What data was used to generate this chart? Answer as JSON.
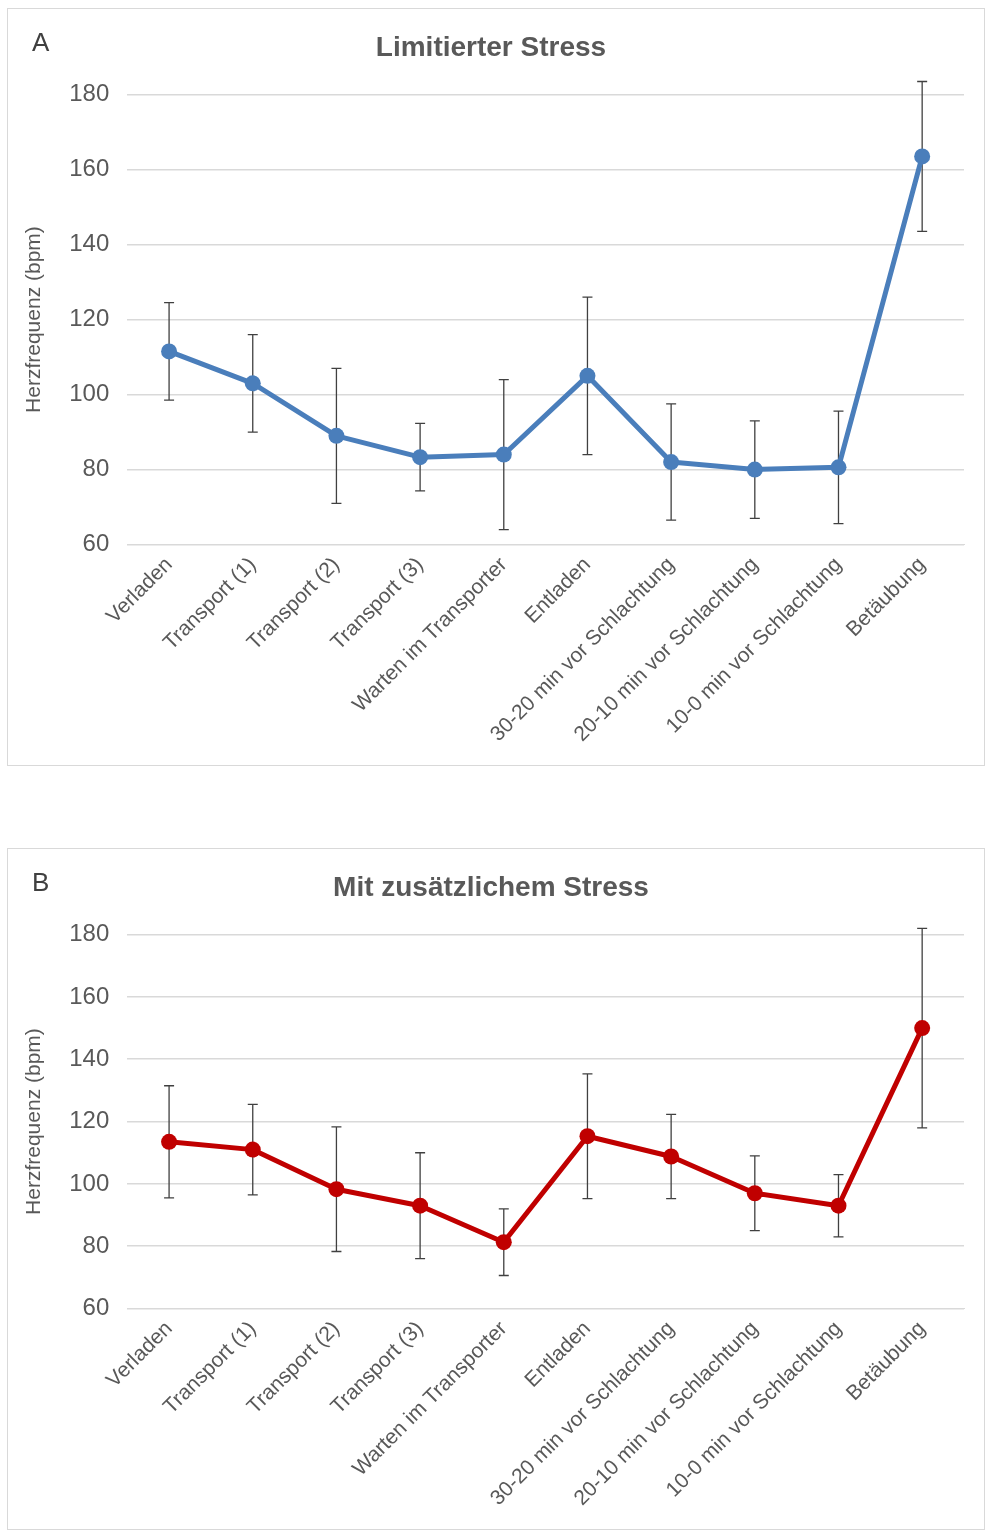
{
  "chart_data": [
    {
      "type": "line",
      "title": "Limitierter Stress",
      "annotations": [
        "A"
      ],
      "ylabel": "Herzfrequenz (bpm)",
      "categories": [
        "Verladen",
        "Transport (1)",
        "Transport (2)",
        "Transport (3)",
        "Warten im Transporter",
        "Entladen",
        "30-20 min vor Schlachtung",
        "20-10 min vor Schlachtung",
        "10-0 min vor Schlachtung",
        "Betäubung"
      ],
      "series": [
        {
          "color": "#4a7ebb",
          "values": [
            111.5,
            103,
            89,
            83.3,
            84,
            105,
            82,
            80,
            80.6,
            163.5
          ],
          "errors": [
            13,
            13,
            18,
            9,
            20,
            21,
            15.5,
            13,
            15,
            20
          ]
        }
      ],
      "ylim": [
        60,
        180
      ],
      "yticks": [
        60,
        80,
        100,
        120,
        140,
        160,
        180
      ],
      "grid": "y",
      "legend": false,
      "marker": "circle",
      "line_style": "solid"
    },
    {
      "type": "line",
      "title": "Mit zusätzlichem Stress",
      "annotations": [
        "B"
      ],
      "ylabel": "Herzfrequenz (bpm)",
      "categories": [
        "Verladen",
        "Transport (1)",
        "Transport (2)",
        "Transport (3)",
        "Warten im Transporter",
        "Entladen",
        "30-20 min vor Schlachtung",
        "20-10 min vor Schlachtung",
        "10-0 min vor Schlachtung",
        "Betäubung"
      ],
      "series": [
        {
          "color": "#c00000",
          "values": [
            113.5,
            111,
            98.3,
            93,
            81.3,
            115.3,
            108.8,
            97,
            93,
            150
          ],
          "errors": [
            18,
            14.5,
            20,
            17,
            10.7,
            20,
            13.5,
            12,
            10,
            32
          ]
        }
      ],
      "ylim": [
        60,
        180
      ],
      "yticks": [
        60,
        80,
        100,
        120,
        140,
        160,
        180
      ],
      "grid": "y",
      "legend": false,
      "marker": "circle",
      "line_style": "solid"
    }
  ]
}
